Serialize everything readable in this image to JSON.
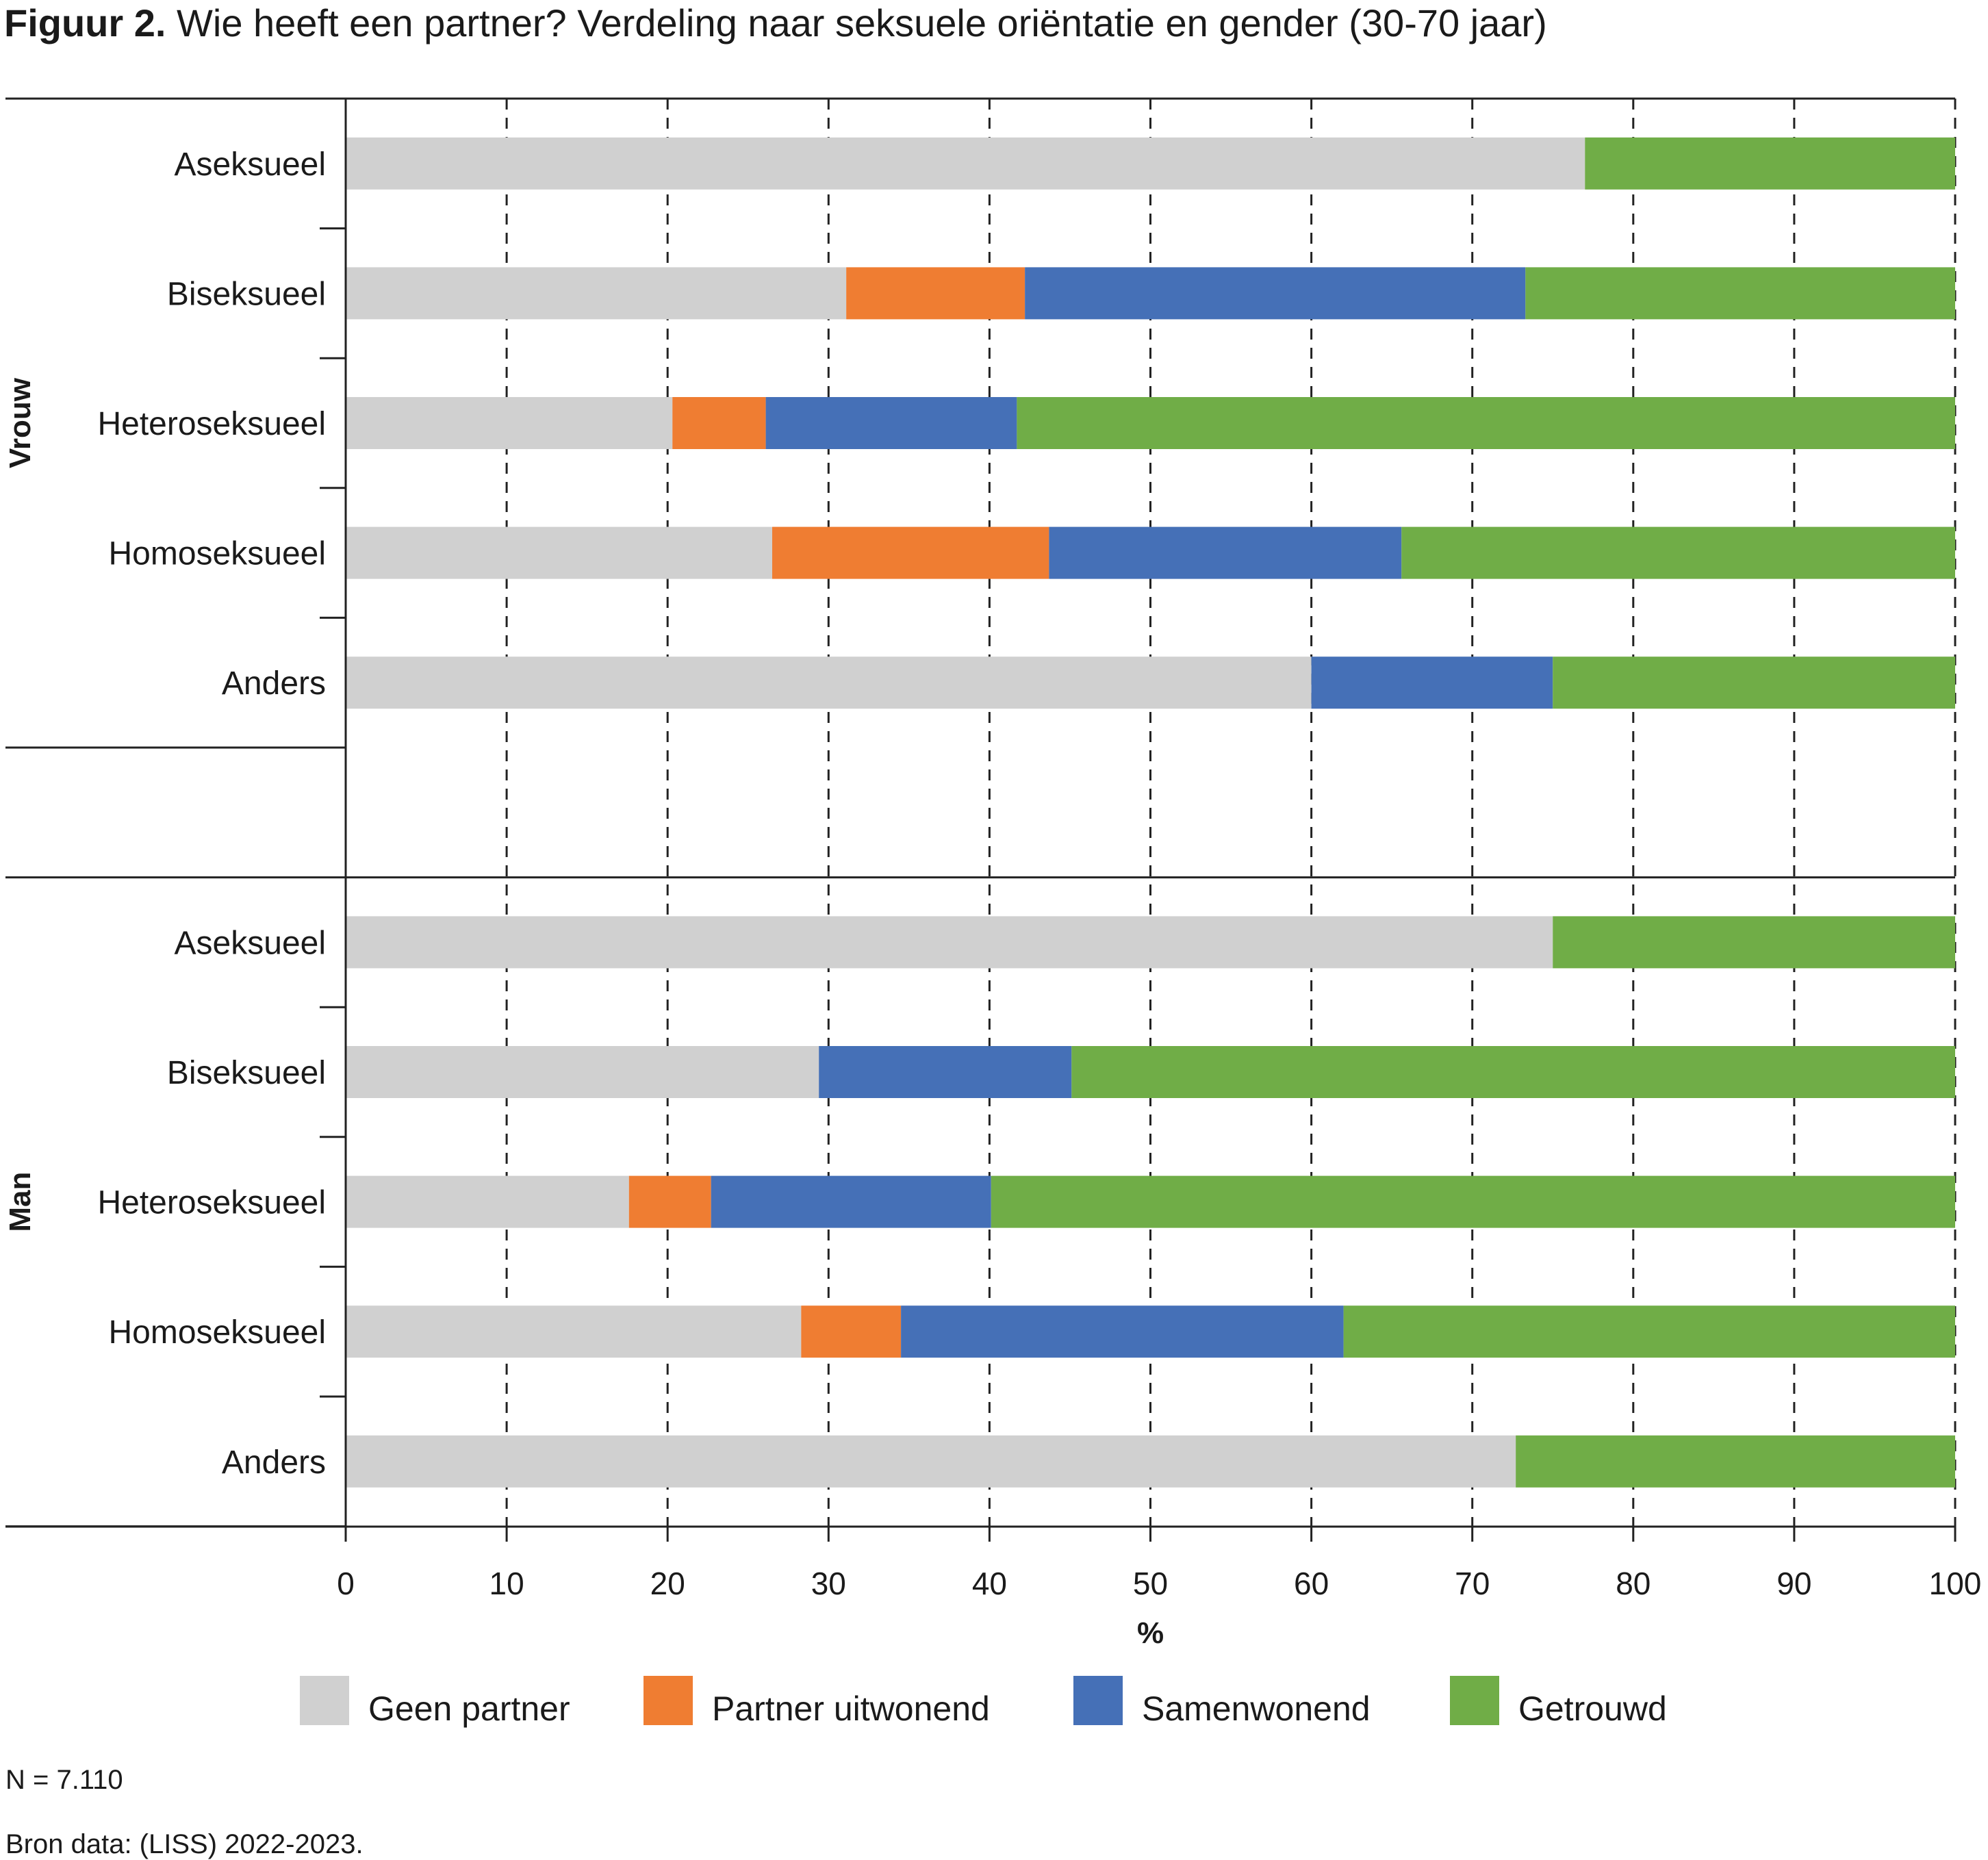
{
  "title": {
    "prefix": "Figuur 2.",
    "text": "Wie heeft een partner? Verdeling naar seksuele oriëntatie en gender (30-70 jaar)"
  },
  "colors": {
    "geen_partner": "#d0d0d0",
    "partner_uitwonend": "#ef7d32",
    "samenwonend": "#4570b7",
    "getrouwd": "#70ad47"
  },
  "chart_data": {
    "type": "bar",
    "orientation": "horizontal",
    "stacked": true,
    "xlabel": "%",
    "xlim": [
      0,
      100
    ],
    "xticks": [
      "0",
      "10",
      "20",
      "30",
      "40",
      "50",
      "60",
      "70",
      "80",
      "90",
      "100"
    ],
    "grid": "vertical dashed",
    "legend_position": "bottom",
    "series": [
      "Geen partner",
      "Partner uitwonend",
      "Samenwonend",
      "Getrouwd"
    ],
    "groups": [
      {
        "name": "Vrouw",
        "rows": [
          {
            "label": "Aseksueel",
            "values": [
              77.0,
              0.0,
              0.0,
              23.0
            ]
          },
          {
            "label": "Biseksueel",
            "values": [
              31.1,
              11.1,
              31.1,
              26.7
            ]
          },
          {
            "label": "Heteroseksueel",
            "values": [
              20.3,
              5.8,
              15.6,
              58.3
            ]
          },
          {
            "label": "Homoseksueel",
            "values": [
              26.5,
              17.2,
              21.9,
              34.4
            ]
          },
          {
            "label": "Anders",
            "values": [
              60.0,
              0.0,
              15.0,
              25.0
            ]
          }
        ]
      },
      {
        "name": "Man",
        "rows": [
          {
            "label": "Aseksueel",
            "values": [
              75.0,
              0.0,
              0.0,
              25.0
            ]
          },
          {
            "label": "Biseksueel",
            "values": [
              29.4,
              0.0,
              15.7,
              54.9
            ]
          },
          {
            "label": "Heteroseksueel",
            "values": [
              17.6,
              5.1,
              17.4,
              59.9
            ]
          },
          {
            "label": "Homoseksueel",
            "values": [
              28.3,
              6.2,
              27.5,
              38.0
            ]
          },
          {
            "label": "Anders",
            "values": [
              72.7,
              0.0,
              0.0,
              27.3
            ]
          }
        ]
      }
    ]
  },
  "legend": [
    {
      "key": "geen_partner",
      "label": "Geen partner"
    },
    {
      "key": "partner_uitwonend",
      "label": "Partner uitwonend"
    },
    {
      "key": "samenwonend",
      "label": "Samenwonend"
    },
    {
      "key": "getrouwd",
      "label": "Getrouwd"
    }
  ],
  "notes": {
    "n": "N = 7.110",
    "source": "Bron data: (LISS) 2022-2023."
  }
}
